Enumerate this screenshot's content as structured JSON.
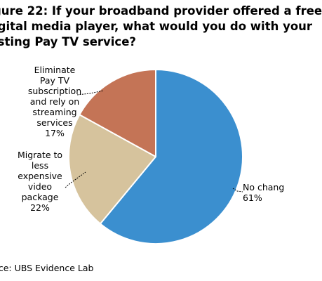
{
  "figure": {
    "title_lines": [
      "gure 22: If your broadband provider offered a free",
      "igital media player, what would you do with your",
      "isting Pay TV service?"
    ],
    "source": "rce:  UBS Evidence Lab"
  },
  "chart_data": {
    "type": "pie",
    "title": "gure 22: If your broadband provider offered a free igital media player, what would you do with your isting Pay TV service?",
    "start_angle_deg": 0,
    "direction": "clockwise",
    "slices": [
      {
        "label_lines": [
          "No chang"
        ],
        "percent_label": "61%",
        "value": 61,
        "color": "#3b8fcf"
      },
      {
        "label_lines": [
          "Migrate to",
          "less",
          "expensive",
          "video",
          "package"
        ],
        "percent_label": "22%",
        "value": 22,
        "color": "#d6c39d"
      },
      {
        "label_lines": [
          "Eliminate",
          "Pay TV",
          "subscription",
          "and rely on",
          "streaming",
          "services"
        ],
        "percent_label": "17%",
        "value": 17,
        "color": "#c47456"
      }
    ],
    "slice_border_color": "#ffffff",
    "leader_line_color": "#000000"
  }
}
